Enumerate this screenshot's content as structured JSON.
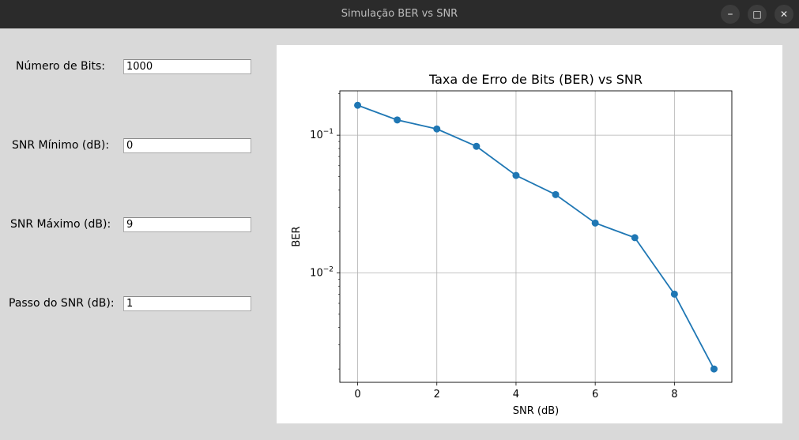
{
  "window": {
    "title": "Simulação BER vs SNR",
    "controls": {
      "minimize": "–",
      "maximize": "□",
      "close": "✕"
    }
  },
  "form": {
    "num_bits_label": "Número de Bits:",
    "num_bits_value": "1000",
    "snr_min_label": "SNR Mínimo (dB):",
    "snr_min_value": "0",
    "snr_max_label": "SNR Máximo (dB):",
    "snr_max_value": "9",
    "snr_step_label": "Passo do SNR (dB):",
    "snr_step_value": "1"
  },
  "chart_data": {
    "type": "line",
    "title": "Taxa de Erro de Bits (BER) vs SNR",
    "xlabel": "SNR (dB)",
    "ylabel": "BER",
    "yscale": "log",
    "xlim": [
      -0.45,
      9.45
    ],
    "ylim": [
      0.0016,
      0.21
    ],
    "x": [
      0,
      1,
      2,
      3,
      4,
      5,
      6,
      7,
      8,
      9
    ],
    "series": [
      {
        "values": [
          0.165,
          0.129,
          0.111,
          0.083,
          0.051,
          0.037,
          0.023,
          0.018,
          0.007,
          0.002
        ],
        "color": "#1f77b4",
        "marker": "circle"
      }
    ],
    "xticks": [
      0,
      2,
      4,
      6,
      8
    ],
    "yticks": [
      {
        "value": 0.1,
        "base": "10",
        "exp": "−1"
      },
      {
        "value": 0.01,
        "base": "10",
        "exp": "−2"
      }
    ],
    "grid": true
  }
}
